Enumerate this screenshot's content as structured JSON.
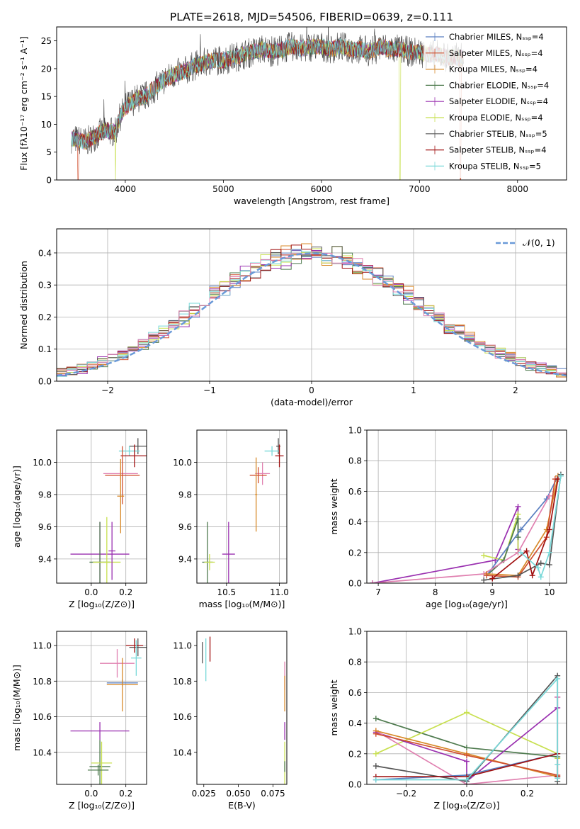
{
  "figure": {
    "title": "PLATE=2618, MJD=54506, FIBERID=0639, z=0.111"
  },
  "colors": {
    "Chabrier MILES": "#5a7fc0",
    "Salpeter MILES": "#d05030",
    "Kroupa MILES": "#d88a2a",
    "Chabrier ELODIE": "#4e7a4e",
    "Salpeter ELODIE": "#9a30b0",
    "Kroupa ELODIE": "#c8e050",
    "Chabrier STELIB": "#555555",
    "Salpeter STELIB": "#a01010",
    "Kroupa STELIB": "#78d8d8",
    "gauss": "#6a9ad8",
    "pink": "#e080b0"
  },
  "chart_data": [
    {
      "id": "spectrum",
      "type": "line",
      "title": "PLATE=2618, MJD=54506, FIBERID=0639, z=0.111",
      "xlabel": "wavelength [Angstrom, rest frame]",
      "ylabel": "Flux [fλ10⁻¹⁷ erg cm⁻² s⁻¹ A⁻¹]",
      "xlim": [
        3300,
        8500
      ],
      "ylim": [
        0,
        27.5
      ],
      "xticks": [
        4000,
        5000,
        6000,
        7000,
        8000
      ],
      "yticks": [
        0,
        5,
        10,
        15,
        20,
        25
      ],
      "grid": false,
      "legend": "right",
      "legend_entries": [
        "Chabrier MILES, Nₛₛₚ=4",
        "Salpeter MILES, Nₛₛₚ=4",
        "Kroupa MILES, Nₛₛₚ=4",
        "Chabrier ELODIE, Nₛₛₚ=4",
        "Salpeter ELODIE, Nₛₛₚ=4",
        "Kroupa ELODIE, Nₛₛₚ=4",
        "Chabrier STELIB, Nₛₛₚ=5",
        "Salpeter STELIB, Nₛₛₚ=4",
        "Kroupa STELIB, Nₛₛₚ=5"
      ],
      "legend_colors": [
        "Chabrier MILES",
        "Salpeter MILES",
        "Kroupa MILES",
        "Chabrier ELODIE",
        "Salpeter ELODIE",
        "Kroupa ELODIE",
        "Chabrier STELIB",
        "Salpeter STELIB",
        "Kroupa STELIB"
      ],
      "continuum_x": [
        3450,
        3600,
        3700,
        3800,
        3900,
        3950,
        4000,
        4100,
        4200,
        4300,
        4400,
        4500,
        4600,
        4700,
        4800,
        4900,
        5000,
        5100,
        5200,
        5300,
        5400,
        5500,
        5600,
        5700,
        5800,
        5900,
        6000,
        6100,
        6200,
        6300,
        6400,
        6500,
        6600,
        6700,
        6800,
        6900,
        7000,
        7100,
        7200,
        7300,
        7400
      ],
      "continuum_y": [
        7.5,
        6.8,
        8.0,
        9.0,
        8.5,
        11.5,
        13.0,
        14.5,
        15.0,
        16.5,
        18.0,
        19.0,
        19.5,
        20.5,
        21.0,
        21.5,
        21.5,
        22.0,
        22.5,
        23.0,
        23.5,
        23.0,
        23.5,
        24.0,
        23.5,
        24.0,
        24.0,
        23.5,
        24.0,
        23.5,
        23.5,
        23.0,
        24.0,
        23.5,
        23.5,
        23.0,
        23.0,
        22.5,
        22.5,
        22.0,
        22.0
      ],
      "dropouts": [
        [
          3520,
          "Salpeter MILES"
        ],
        [
          3900,
          "Kroupa ELODIE"
        ],
        [
          6800,
          "Kroupa ELODIE"
        ],
        [
          7420,
          "Salpeter MILES"
        ]
      ]
    },
    {
      "id": "residuals",
      "type": "line",
      "xlabel": "(data-model)/error",
      "ylabel": "Normed distribution",
      "xlim": [
        -2.5,
        2.5
      ],
      "ylim": [
        0,
        0.475
      ],
      "xticks": [
        -2,
        -1,
        0,
        1,
        2
      ],
      "yticks": [
        0.0,
        0.1,
        0.2,
        0.3,
        0.4
      ],
      "grid": true,
      "legend": "top-right",
      "legend_entries": [
        "𝒩(0, 1)"
      ],
      "series": [
        {
          "name": "𝒩(0, 1)",
          "color": "gauss",
          "dashed": true,
          "mu": 0,
          "sigma": 1
        }
      ],
      "hist_bins": [
        -2.5,
        2.5,
        0.1
      ],
      "hist_series": [
        "Chabrier MILES",
        "Salpeter MILES",
        "Kroupa MILES",
        "Chabrier ELODIE",
        "Salpeter ELODIE",
        "Kroupa ELODIE",
        "Chabrier STELIB",
        "Salpeter STELIB",
        "Kroupa STELIB",
        "pink"
      ]
    },
    {
      "id": "z-age",
      "type": "scatter",
      "xlabel": "Z [log₁₀(Z/Z⊙)]",
      "ylabel": "age  [log₁₀(age/yr)]",
      "xlim": [
        -0.2,
        0.32
      ],
      "ylim": [
        9.25,
        10.2
      ],
      "xticks": [
        0.0,
        0.2
      ],
      "xticklabels": [
        "0.0",
        "0.2"
      ],
      "yticks": [
        9.4,
        9.6,
        9.8,
        10.0
      ],
      "yticklabels": [
        "9.4",
        "9.6",
        "9.8",
        "10.0"
      ],
      "grid": true,
      "points": [
        {
          "x": 0.27,
          "y": 10.1,
          "xerr": 0.05,
          "yerr": 0.05,
          "c": "Chabrier STELIB"
        },
        {
          "x": 0.22,
          "y": 10.07,
          "xerr": 0.06,
          "yerr": 0.03,
          "c": "Kroupa STELIB"
        },
        {
          "x": 0.25,
          "y": 10.04,
          "xerr": 0.08,
          "yerr": 0.07,
          "c": "Salpeter STELIB"
        },
        {
          "x": 0.17,
          "y": 9.93,
          "xerr": 0.1,
          "yerr": 0.04,
          "c": "pink"
        },
        {
          "x": 0.18,
          "y": 9.92,
          "xerr": 0.1,
          "yerr": 0.18,
          "c": "Salpeter MILES"
        },
        {
          "x": 0.17,
          "y": 9.79,
          "xerr": 0.02,
          "yerr": 0.23,
          "c": "Kroupa MILES"
        },
        {
          "x": 0.05,
          "y": 9.43,
          "xerr": 0.17,
          "yerr": 0.2,
          "c": "Salpeter ELODIE"
        },
        {
          "x": 0.05,
          "y": 9.38,
          "xerr": 0.06,
          "yerr": 0.25,
          "c": "Chabrier ELODIE"
        },
        {
          "x": 0.09,
          "y": 9.38,
          "xerr": 0.08,
          "yerr": 0.28,
          "c": "Kroupa ELODIE"
        },
        {
          "x": 0.12,
          "y": 9.45,
          "xerr": 0.02,
          "yerr": 0.18,
          "c": "Salpeter ELODIE"
        }
      ]
    },
    {
      "id": "mass-age",
      "type": "scatter",
      "xlabel": "mass [log₁₀(M/M⊙)]",
      "ylabel": "",
      "xlim": [
        10.22,
        11.07
      ],
      "ylim": [
        9.25,
        10.2
      ],
      "xticks": [
        10.5,
        11.0
      ],
      "xticklabels": [
        "10.5",
        "11.0"
      ],
      "yticks": [
        9.4,
        9.6,
        9.8,
        10.0
      ],
      "yticklabels": [
        "9.4",
        "9.6",
        "9.8",
        "10.0"
      ],
      "grid": true,
      "points": [
        {
          "x": 10.99,
          "y": 10.1,
          "xerr": 0.02,
          "yerr": 0.05,
          "c": "Chabrier STELIB"
        },
        {
          "x": 10.93,
          "y": 10.07,
          "xerr": 0.07,
          "yerr": 0.03,
          "c": "Kroupa STELIB"
        },
        {
          "x": 11.0,
          "y": 10.04,
          "xerr": 0.04,
          "yerr": 0.07,
          "c": "Salpeter STELIB"
        },
        {
          "x": 10.84,
          "y": 9.93,
          "xerr": 0.07,
          "yerr": 0.07,
          "c": "pink"
        },
        {
          "x": 10.8,
          "y": 9.92,
          "xerr": 0.08,
          "yerr": 0.05,
          "c": "Salpeter MILES"
        },
        {
          "x": 10.78,
          "y": 9.8,
          "xerr": 0.01,
          "yerr": 0.23,
          "c": "Kroupa MILES"
        },
        {
          "x": 10.52,
          "y": 9.43,
          "xerr": 0.06,
          "yerr": 0.2,
          "c": "Salpeter ELODIE"
        },
        {
          "x": 10.32,
          "y": 9.38,
          "xerr": 0.05,
          "yerr": 0.25,
          "c": "Chabrier ELODIE"
        },
        {
          "x": 10.34,
          "y": 9.38,
          "xerr": 0.05,
          "yerr": 0.05,
          "c": "Kroupa ELODIE"
        }
      ]
    },
    {
      "id": "weight-age",
      "type": "line",
      "xlabel": "age  [log₁₀(age/yr)]",
      "ylabel": "mass weight",
      "xlim": [
        6.8,
        10.3
      ],
      "ylim": [
        0,
        1.0
      ],
      "xticks": [
        7,
        8,
        9,
        10
      ],
      "xticklabels": [
        "7",
        "8",
        "9",
        "10"
      ],
      "yticks": [
        0.0,
        0.2,
        0.4,
        0.6,
        0.8,
        1.0
      ],
      "yticklabels": [
        "0.0",
        "0.2",
        "0.4",
        "0.6",
        "0.8",
        "1.0"
      ],
      "grid": true,
      "series": [
        {
          "c": "Salpeter ELODIE",
          "x": [
            6.9,
            9.05,
            9.45,
            9.45
          ],
          "y": [
            0.0,
            0.15,
            0.5,
            0.22
          ]
        },
        {
          "c": "Kroupa ELODIE",
          "x": [
            8.85,
            9.2,
            9.45,
            9.45
          ],
          "y": [
            0.18,
            0.15,
            0.45,
            0.2
          ]
        },
        {
          "c": "Chabrier ELODIE",
          "x": [
            8.9,
            9.2,
            9.45,
            9.45
          ],
          "y": [
            0.05,
            0.15,
            0.42,
            0.3
          ]
        },
        {
          "c": "Chabrier MILES",
          "x": [
            8.9,
            9.5,
            9.95,
            10.15
          ],
          "y": [
            0.05,
            0.35,
            0.55,
            0.7
          ]
        },
        {
          "c": "pink",
          "x": [
            6.9,
            8.85,
            9.45,
            10.0
          ],
          "y": [
            0.0,
            0.06,
            0.2,
            0.57
          ]
        },
        {
          "c": "Kroupa MILES",
          "x": [
            8.9,
            9.45,
            9.95,
            10.15
          ],
          "y": [
            0.06,
            0.05,
            0.35,
            0.7
          ]
        },
        {
          "c": "Salpeter MILES",
          "x": [
            8.9,
            9.45,
            9.95,
            10.1
          ],
          "y": [
            0.05,
            0.04,
            0.3,
            0.68
          ]
        },
        {
          "c": "Chabrier STELIB",
          "x": [
            8.85,
            9.45,
            9.85,
            10.0,
            10.2
          ],
          "y": [
            0.02,
            0.05,
            0.13,
            0.12,
            0.71
          ]
        },
        {
          "c": "Salpeter STELIB",
          "x": [
            9.0,
            9.6,
            9.7,
            10.0,
            10.15
          ],
          "y": [
            0.03,
            0.21,
            0.05,
            0.35,
            0.68
          ]
        },
        {
          "c": "Kroupa STELIB",
          "x": [
            9.5,
            9.8,
            9.85,
            10.0,
            10.2
          ],
          "y": [
            0.2,
            0.1,
            0.04,
            0.2,
            0.7
          ]
        }
      ]
    },
    {
      "id": "z-mass",
      "type": "scatter",
      "xlabel": "Z [log₁₀(Z/Z⊙)]",
      "ylabel": "mass [log₁₀(M/M⊙)]",
      "xlim": [
        -0.2,
        0.32
      ],
      "ylim": [
        10.22,
        11.08
      ],
      "xticks": [
        0.0,
        0.2
      ],
      "xticklabels": [
        "0.0",
        "0.2"
      ],
      "yticks": [
        10.4,
        10.6,
        10.8,
        11.0
      ],
      "yticklabels": [
        "10.4",
        "10.6",
        "10.8",
        "11.0"
      ],
      "grid": true,
      "points": [
        {
          "x": 0.27,
          "y": 10.99,
          "xerr": 0.05,
          "yerr": 0.05,
          "c": "Chabrier STELIB"
        },
        {
          "x": 0.25,
          "y": 11.0,
          "xerr": 0.05,
          "yerr": 0.04,
          "c": "Salpeter STELIB"
        },
        {
          "x": 0.26,
          "y": 10.93,
          "xerr": 0.03,
          "yerr": 0.1,
          "c": "Kroupa STELIB"
        },
        {
          "x": 0.15,
          "y": 10.9,
          "xerr": 0.1,
          "yerr": 0.08,
          "c": "pink"
        },
        {
          "x": 0.18,
          "y": 10.79,
          "xerr": 0.09,
          "yerr": 0.02,
          "c": "Chabrier MILES"
        },
        {
          "x": 0.18,
          "y": 10.78,
          "xerr": 0.09,
          "yerr": 0.15,
          "c": "Kroupa MILES"
        },
        {
          "x": 0.05,
          "y": 10.52,
          "xerr": 0.17,
          "yerr": 0.05,
          "c": "Salpeter ELODIE"
        },
        {
          "x": 0.05,
          "y": 10.32,
          "xerr": 0.06,
          "yerr": 0.15,
          "c": "Chabrier ELODIE"
        },
        {
          "x": 0.06,
          "y": 10.34,
          "xerr": 0.06,
          "yerr": 0.12,
          "c": "Kroupa ELODIE"
        },
        {
          "x": 0.04,
          "y": 10.3,
          "xerr": 0.06,
          "yerr": 0.03,
          "c": "Chabrier ELODIE"
        }
      ]
    },
    {
      "id": "ebv-mass",
      "type": "scatter",
      "xlabel": "E(B-V)",
      "ylabel": "",
      "xlim": [
        0.02,
        0.085
      ],
      "ylim": [
        10.22,
        11.08
      ],
      "xticks": [
        0.025,
        0.05,
        0.075
      ],
      "xticklabels": [
        "0.025",
        "0.050",
        "0.075"
      ],
      "yticks": [
        10.4,
        10.6,
        10.8,
        11.0
      ],
      "yticklabels": [
        "10.4",
        "10.6",
        "10.8",
        "11.0"
      ],
      "grid": false,
      "points": [
        {
          "x": 0.024,
          "y": 10.96,
          "xerr": 0,
          "yerr": 0.06,
          "c": "Chabrier STELIB"
        },
        {
          "x": 0.0295,
          "y": 10.98,
          "xerr": 0,
          "yerr": 0.07,
          "c": "Salpeter STELIB"
        },
        {
          "x": 0.0265,
          "y": 10.92,
          "xerr": 0,
          "yerr": 0.12,
          "c": "Kroupa STELIB"
        },
        {
          "x": 0.0835,
          "y": 10.83,
          "xerr": 0,
          "yerr": 0.08,
          "c": "pink"
        },
        {
          "x": 0.0835,
          "y": 10.73,
          "xerr": 0,
          "yerr": 0.1,
          "c": "Kroupa MILES"
        },
        {
          "x": 0.0835,
          "y": 10.52,
          "xerr": 0,
          "yerr": 0.05,
          "c": "Salpeter ELODIE"
        },
        {
          "x": 0.0835,
          "y": 10.34,
          "xerr": 0,
          "yerr": 0.12,
          "c": "Kroupa ELODIE"
        },
        {
          "x": 0.0835,
          "y": 10.32,
          "xerr": 0,
          "yerr": 0.03,
          "c": "Chabrier ELODIE"
        }
      ]
    },
    {
      "id": "weight-z",
      "type": "line",
      "xlabel": "Z [log₁₀(Z/Z⊙)]",
      "ylabel": "mass weight",
      "xlim": [
        -0.33,
        0.33
      ],
      "ylim": [
        0,
        1.0
      ],
      "xticks": [
        -0.2,
        0.0,
        0.2
      ],
      "xticklabels": [
        "−0.2",
        "0.0",
        "0.2"
      ],
      "yticks": [
        0.0,
        0.2,
        0.4,
        0.6,
        0.8,
        1.0
      ],
      "yticklabels": [
        "0.0",
        "0.2",
        "0.4",
        "0.6",
        "0.8",
        "1.0"
      ],
      "grid": true,
      "series": [
        {
          "c": "Chabrier ELODIE",
          "x": [
            -0.3,
            0.0,
            0.3,
            0.3
          ],
          "y": [
            0.43,
            0.24,
            0.18,
            0.2
          ]
        },
        {
          "c": "Kroupa ELODIE",
          "x": [
            -0.3,
            0.0,
            0.3,
            0.3
          ],
          "y": [
            0.2,
            0.47,
            0.2,
            0.17
          ]
        },
        {
          "c": "Salpeter ELODIE",
          "x": [
            -0.3,
            0.0,
            0.0,
            0.3,
            0.3
          ],
          "y": [
            0.34,
            0.15,
            0.02,
            0.5,
            0.57
          ]
        },
        {
          "c": "pink",
          "x": [
            -0.3,
            0.0,
            0.3,
            0.3
          ],
          "y": [
            0.35,
            0.0,
            0.06,
            0.57
          ]
        },
        {
          "c": "Kroupa MILES",
          "x": [
            -0.3,
            0.0,
            0.3
          ],
          "y": [
            0.35,
            0.2,
            0.05
          ]
        },
        {
          "c": "Salpeter MILES",
          "x": [
            -0.3,
            0.0,
            0.3
          ],
          "y": [
            0.33,
            0.19,
            0.06
          ]
        },
        {
          "c": "Chabrier MILES",
          "x": [
            -0.3,
            0.0,
            0.3
          ],
          "y": [
            0.03,
            0.06,
            0.2
          ]
        },
        {
          "c": "Chabrier STELIB",
          "x": [
            -0.3,
            0.0,
            0.3,
            0.3
          ],
          "y": [
            0.12,
            0.02,
            0.71,
            0.02
          ]
        },
        {
          "c": "Salpeter STELIB",
          "x": [
            -0.3,
            0.0,
            0.3,
            0.3
          ],
          "y": [
            0.05,
            0.05,
            0.2,
            0.05
          ]
        },
        {
          "c": "Kroupa STELIB",
          "x": [
            -0.3,
            0.0,
            0.3,
            0.3,
            0.3
          ],
          "y": [
            0.03,
            0.03,
            0.69,
            0.13,
            0.04
          ]
        }
      ]
    }
  ]
}
